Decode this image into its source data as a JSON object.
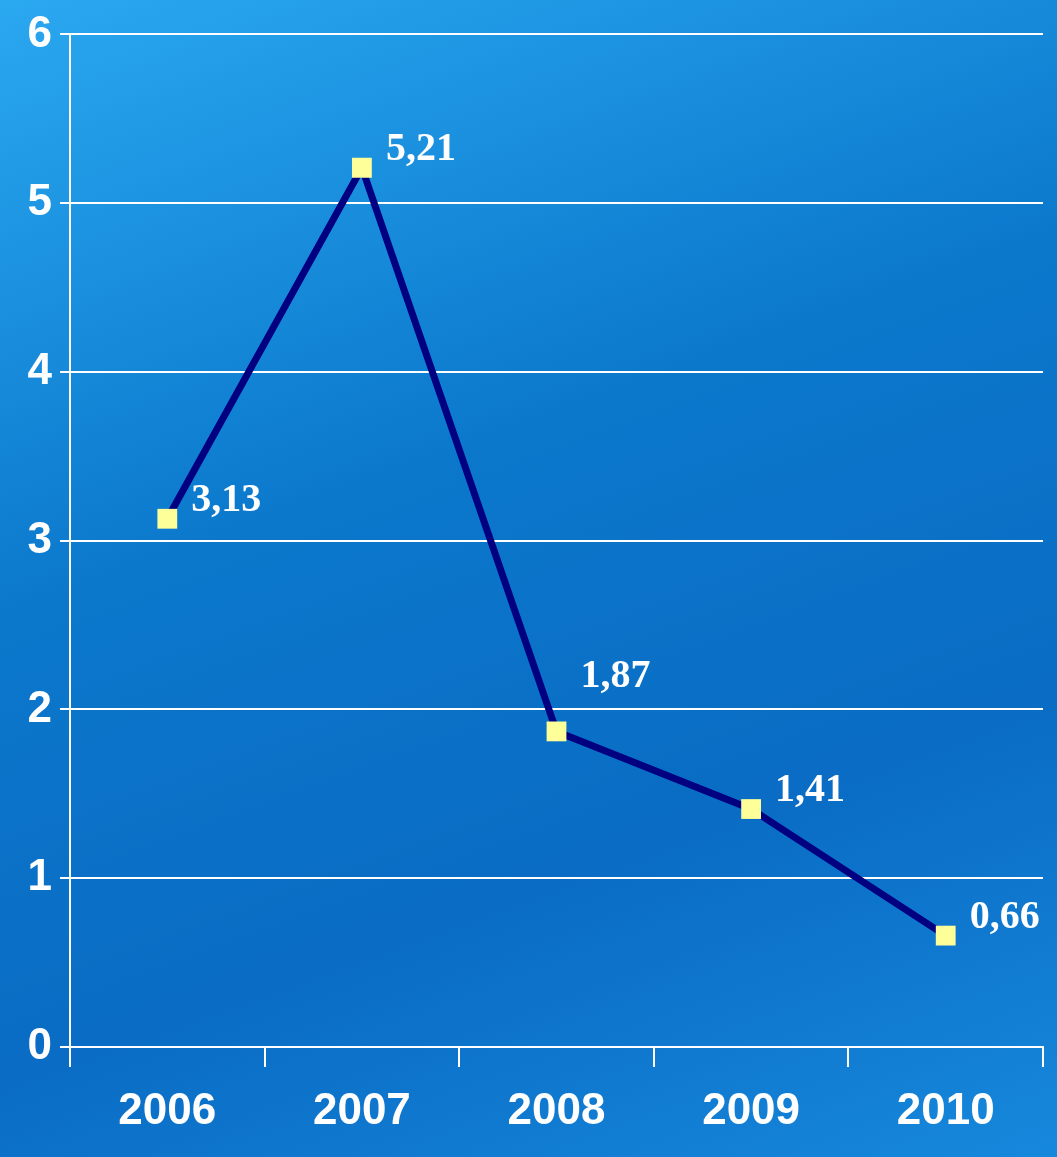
{
  "chart_data": {
    "type": "line",
    "categories": [
      "2006",
      "2007",
      "2008",
      "2009",
      "2010"
    ],
    "series": [
      {
        "color": "#000080",
        "colors": [
          "#ffff99",
          "#ffff99",
          "#ffff99",
          "#ffff99",
          "#ffff99"
        ],
        "values": [
          3.13,
          5.21,
          1.87,
          1.41,
          0.66
        ],
        "value_labels": [
          "3,13",
          "5,21",
          "1,87",
          "1,41",
          "0,66"
        ]
      }
    ],
    "marker": "square",
    "ylim": [
      0,
      6
    ],
    "yticks": [
      0,
      1,
      2,
      3,
      4,
      5,
      6
    ],
    "grid": "y",
    "legend": false
  }
}
